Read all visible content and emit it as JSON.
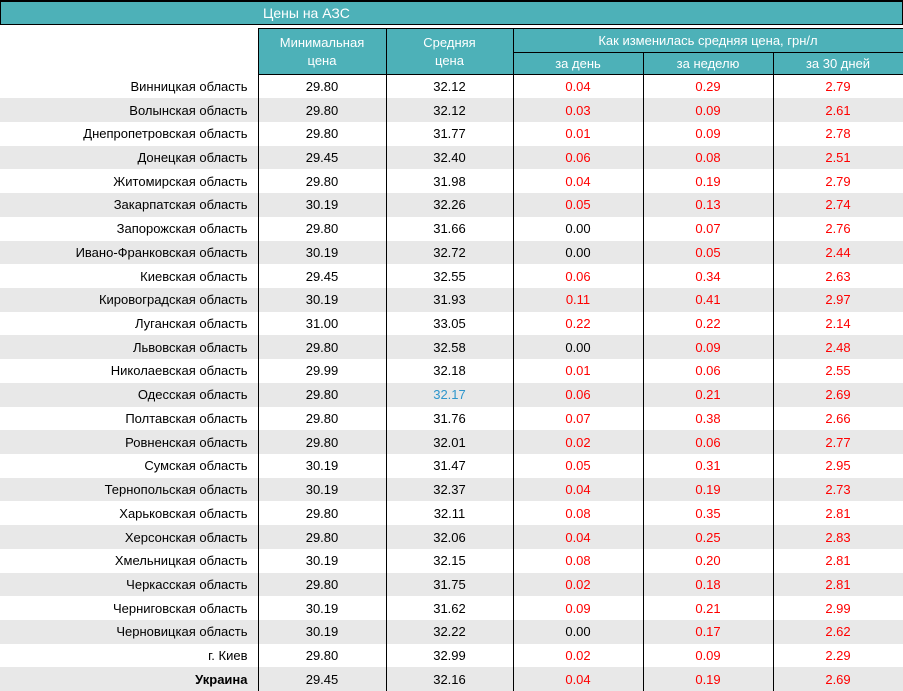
{
  "title": "Цены на АЗС",
  "colors": {
    "header_teal": "#4db1b8",
    "stripe_gray": "#e8e8e8",
    "change_red": "#ff0000",
    "highlight_blue": "#2e96cc",
    "border_black": "#000000"
  },
  "table": {
    "columns": {
      "min_price": {
        "line1": "Минимальная",
        "line2": "цена"
      },
      "avg_price": {
        "line1": "Средняя",
        "line2": "цена"
      },
      "change_group": "Как изменилась средняя цена, грн/л",
      "change_day": "за день",
      "change_week": "за неделю",
      "change_month": "за 30 дней"
    },
    "rows": [
      {
        "region": "Винницкая область",
        "min": "29.80",
        "avg": "32.12",
        "day": "0.04",
        "week": "0.29",
        "month": "2.79"
      },
      {
        "region": "Волынская область",
        "min": "29.80",
        "avg": "32.12",
        "day": "0.03",
        "week": "0.09",
        "month": "2.61"
      },
      {
        "region": "Днепропетровская область",
        "min": "29.80",
        "avg": "31.77",
        "day": "0.01",
        "week": "0.09",
        "month": "2.78"
      },
      {
        "region": "Донецкая область",
        "min": "29.45",
        "avg": "32.40",
        "day": "0.06",
        "week": "0.08",
        "month": "2.51"
      },
      {
        "region": "Житомирская область",
        "min": "29.80",
        "avg": "31.98",
        "day": "0.04",
        "week": "0.19",
        "month": "2.79"
      },
      {
        "region": "Закарпатская область",
        "min": "30.19",
        "avg": "32.26",
        "day": "0.05",
        "week": "0.13",
        "month": "2.74"
      },
      {
        "region": "Запорожская область",
        "min": "29.80",
        "avg": "31.66",
        "day": "0.00",
        "week": "0.07",
        "month": "2.76"
      },
      {
        "region": "Ивано-Франковская область",
        "min": "30.19",
        "avg": "32.72",
        "day": "0.00",
        "week": "0.05",
        "month": "2.44"
      },
      {
        "region": "Киевская область",
        "min": "29.45",
        "avg": "32.55",
        "day": "0.06",
        "week": "0.34",
        "month": "2.63"
      },
      {
        "region": "Кировоградская область",
        "min": "30.19",
        "avg": "31.93",
        "day": "0.11",
        "week": "0.41",
        "month": "2.97"
      },
      {
        "region": "Луганская область",
        "min": "31.00",
        "avg": "33.05",
        "day": "0.22",
        "week": "0.22",
        "month": "2.14"
      },
      {
        "region": "Львовская область",
        "min": "29.80",
        "avg": "32.58",
        "day": "0.00",
        "week": "0.09",
        "month": "2.48"
      },
      {
        "region": "Николаевская область",
        "min": "29.99",
        "avg": "32.18",
        "day": "0.01",
        "week": "0.06",
        "month": "2.55"
      },
      {
        "region": "Одесская область",
        "min": "29.80",
        "avg": "32.17",
        "day": "0.06",
        "week": "0.21",
        "month": "2.69",
        "avg_highlight": true
      },
      {
        "region": "Полтавская область",
        "min": "29.80",
        "avg": "31.76",
        "day": "0.07",
        "week": "0.38",
        "month": "2.66"
      },
      {
        "region": "Ровненская область",
        "min": "29.80",
        "avg": "32.01",
        "day": "0.02",
        "week": "0.06",
        "month": "2.77"
      },
      {
        "region": "Сумская область",
        "min": "30.19",
        "avg": "31.47",
        "day": "0.05",
        "week": "0.31",
        "month": "2.95"
      },
      {
        "region": "Тернопольская область",
        "min": "30.19",
        "avg": "32.37",
        "day": "0.04",
        "week": "0.19",
        "month": "2.73"
      },
      {
        "region": "Харьковская область",
        "min": "29.80",
        "avg": "32.11",
        "day": "0.08",
        "week": "0.35",
        "month": "2.81"
      },
      {
        "region": "Херсонская область",
        "min": "29.80",
        "avg": "32.06",
        "day": "0.04",
        "week": "0.25",
        "month": "2.83"
      },
      {
        "region": "Хмельницкая область",
        "min": "30.19",
        "avg": "32.15",
        "day": "0.08",
        "week": "0.20",
        "month": "2.81"
      },
      {
        "region": "Черкасская область",
        "min": "29.80",
        "avg": "31.75",
        "day": "0.02",
        "week": "0.18",
        "month": "2.81"
      },
      {
        "region": "Черниговская область",
        "min": "30.19",
        "avg": "31.62",
        "day": "0.09",
        "week": "0.21",
        "month": "2.99"
      },
      {
        "region": "Черновицкая область",
        "min": "30.19",
        "avg": "32.22",
        "day": "0.00",
        "week": "0.17",
        "month": "2.62"
      },
      {
        "region": "г. Киев",
        "min": "29.80",
        "avg": "32.99",
        "day": "0.02",
        "week": "0.09",
        "month": "2.29"
      },
      {
        "region": "Украина",
        "min": "29.45",
        "avg": "32.16",
        "day": "0.04",
        "week": "0.19",
        "month": "2.69",
        "bold": true
      }
    ]
  }
}
